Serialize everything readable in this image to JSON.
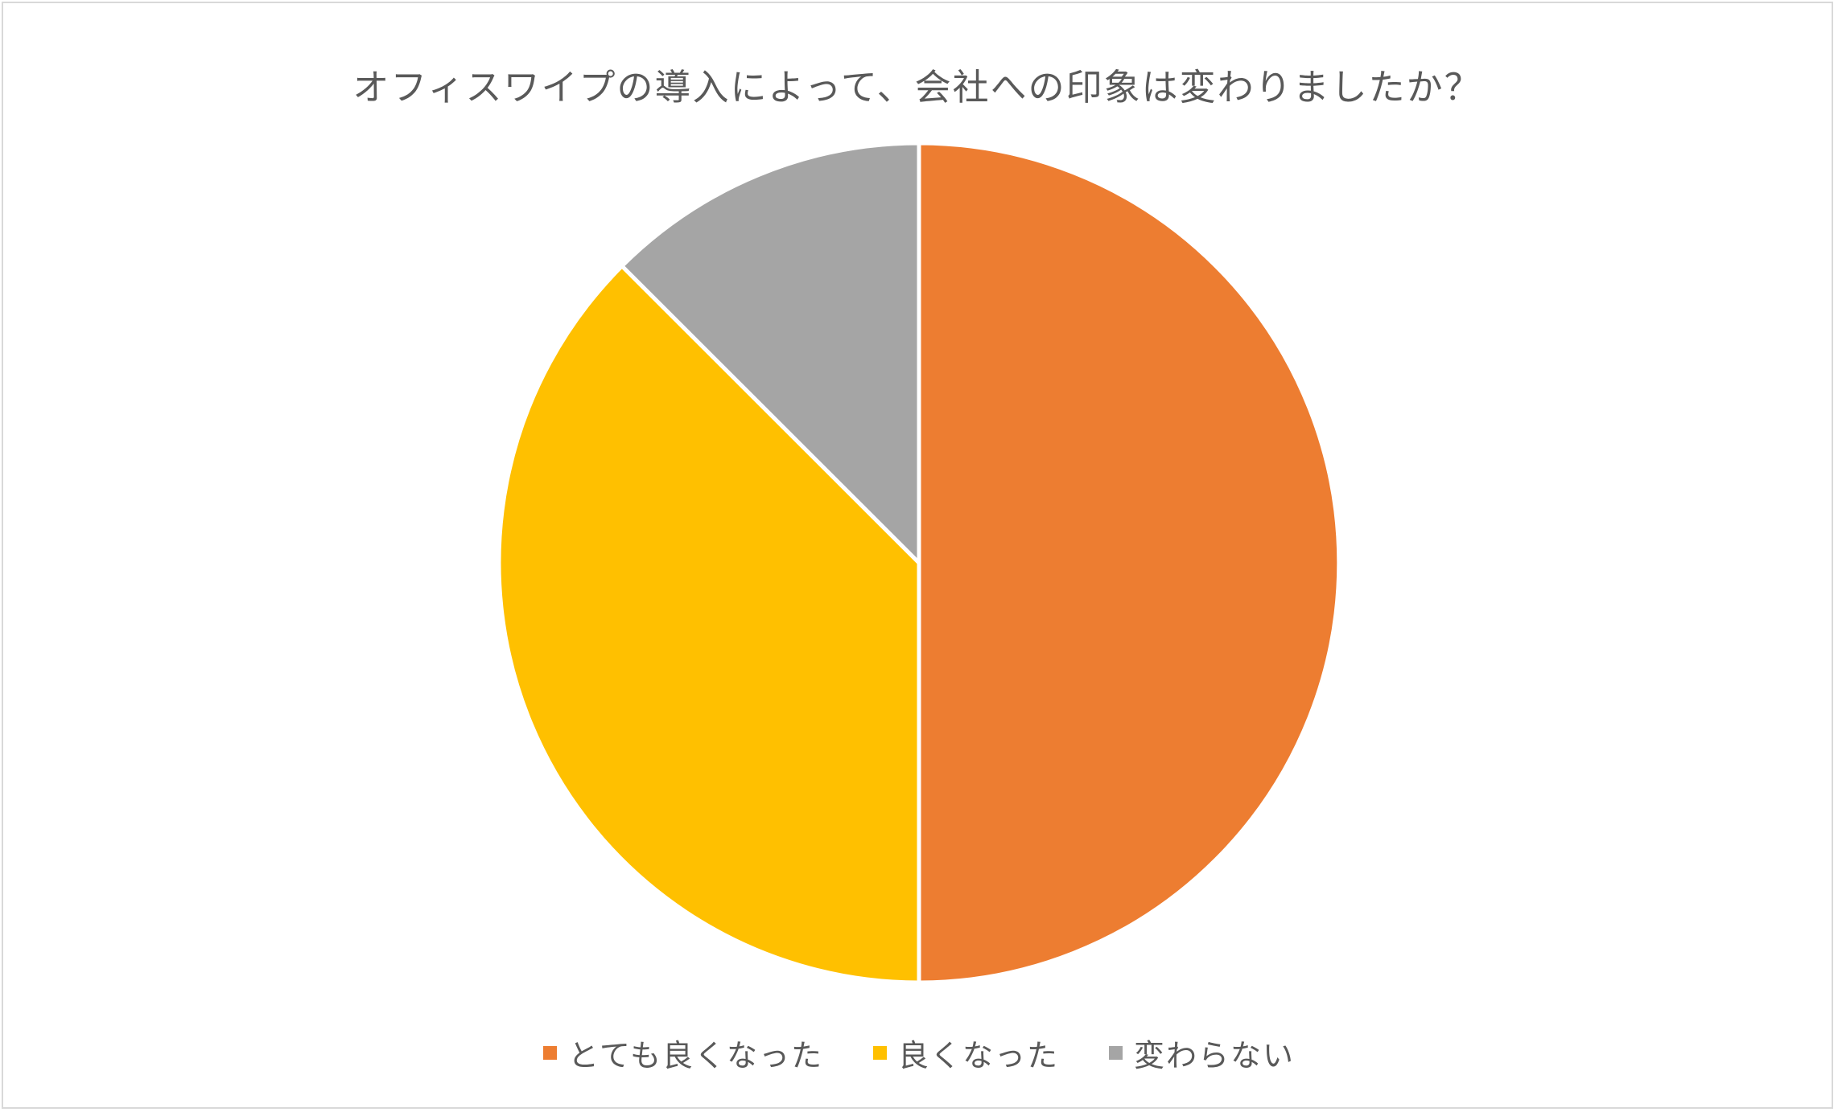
{
  "chart_data": {
    "type": "pie",
    "title": "オフィスワイプの導入によって、会社への印象は変わりましたか？",
    "categories": [
      "とても良くなった",
      "良くなった",
      "変わらない"
    ],
    "values": [
      50,
      37.5,
      12.5
    ],
    "colors": [
      "#ED7D31",
      "#FFC000",
      "#A5A5A5"
    ],
    "start_angle_deg": 0,
    "direction": "clockwise",
    "legend_position": "bottom"
  }
}
